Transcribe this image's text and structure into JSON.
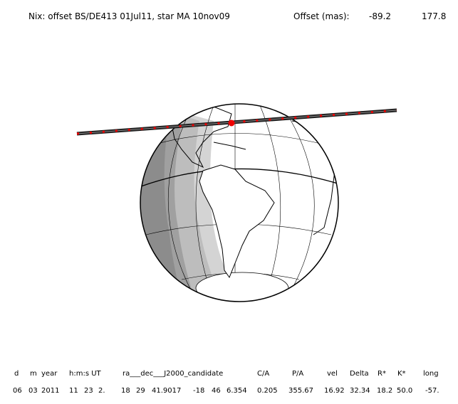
{
  "header": {
    "title": "Nix: offset BS/DE413 01Jul11, star MA 10nov09",
    "offset_label": "Offset (mas):",
    "offset_values": [
      "-89.2",
      "177.8"
    ]
  },
  "table": {
    "columns": [
      "d",
      "m",
      "year",
      "h:m:s UT",
      "ra___dec___J2000_candidate",
      "C/A",
      "P/A",
      "vel",
      "Delta",
      "R*",
      "K*",
      "long"
    ],
    "row": [
      "06",
      "03",
      "2011",
      "11",
      "23",
      "2.",
      "18",
      "29",
      "41.9017",
      "-18",
      "46",
      "6.354",
      "0.205",
      "355.67",
      "16.92",
      "32.34",
      "18.2",
      "50.0",
      "-57."
    ]
  }
}
